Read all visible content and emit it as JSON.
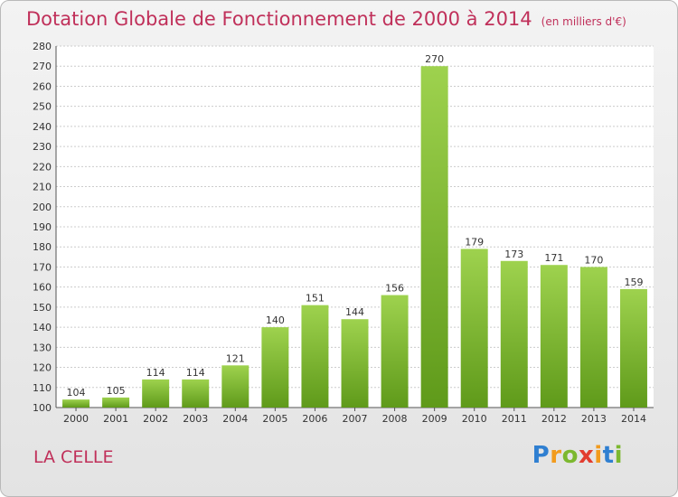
{
  "header": {
    "title": "Dotation Globale de Fonctionnement de 2000 à 2014",
    "subtitle": "(en milliers d'€)"
  },
  "footer": {
    "town": "LA CELLE",
    "logo": [
      "P",
      "r",
      "o",
      "x",
      "i",
      "t",
      "i"
    ]
  },
  "colors": {
    "title": "#c0305a",
    "bar_top": "#9ed24e",
    "bar_bottom": "#5f9a1a"
  },
  "chart_data": {
    "type": "bar",
    "title": "Dotation Globale de Fonctionnement de 2000 à 2014",
    "subtitle": "(en milliers d'€)",
    "categories": [
      "2000",
      "2001",
      "2002",
      "2003",
      "2004",
      "2005",
      "2006",
      "2007",
      "2008",
      "2009",
      "2010",
      "2011",
      "2012",
      "2013",
      "2014"
    ],
    "values": [
      104,
      105,
      114,
      114,
      121,
      140,
      151,
      144,
      156,
      270,
      179,
      173,
      171,
      170,
      159
    ],
    "ylim": [
      100,
      280
    ],
    "yticks": [
      100,
      110,
      120,
      130,
      140,
      150,
      160,
      170,
      180,
      190,
      200,
      210,
      220,
      230,
      240,
      250,
      260,
      270,
      280
    ],
    "grid": true,
    "xlabel": "",
    "ylabel": ""
  }
}
